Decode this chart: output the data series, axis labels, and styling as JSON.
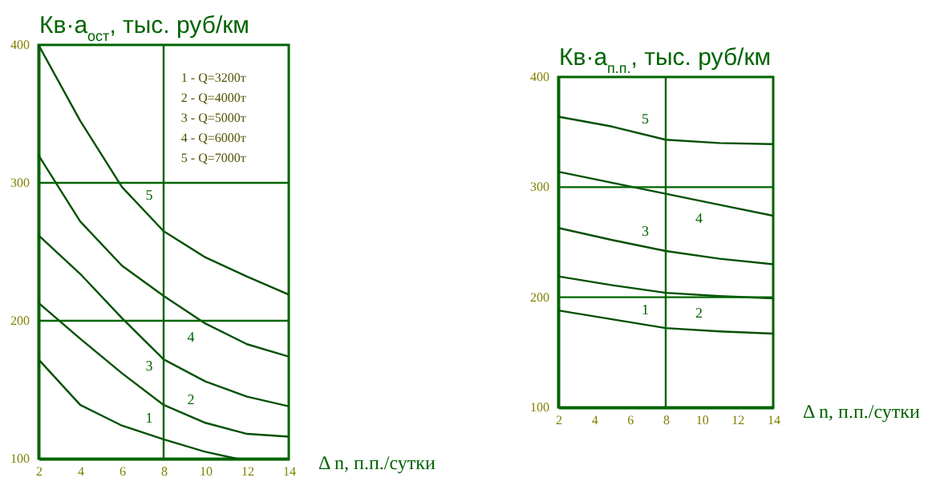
{
  "chart_data": [
    {
      "type": "line",
      "ylabel": "Кв·а$_{ост}$, тыс. руб/км",
      "xlabel": "Δ n, п.п./сутки",
      "xlim": [
        2,
        14
      ],
      "xticks": [
        2,
        4,
        6,
        8,
        10,
        12,
        14
      ],
      "ylim": [
        100,
        400
      ],
      "yticks": [
        100,
        200,
        300,
        400
      ],
      "x": [
        2,
        4,
        6,
        8,
        10,
        12,
        14
      ],
      "series": [
        {
          "name": "1",
          "color": "#005000",
          "x": [
            2,
            4,
            6,
            8,
            10,
            11.5
          ],
          "values": [
            172,
            139,
            124,
            114,
            105,
            100
          ]
        },
        {
          "name": "2",
          "color": "#005000",
          "values": [
            213,
            187,
            162,
            139,
            126,
            118,
            116
          ]
        },
        {
          "name": "3",
          "color": "#005000",
          "values": [
            262,
            234,
            202,
            172,
            156,
            145,
            138
          ]
        },
        {
          "name": "4",
          "color": "#005000",
          "values": [
            320,
            272,
            240,
            218,
            198,
            183,
            174
          ]
        },
        {
          "name": "5",
          "color": "#005000",
          "values": [
            400,
            345,
            297,
            265,
            246,
            232,
            219
          ]
        }
      ],
      "ref_lines": [
        {
          "axis": "x",
          "value": 8,
          "color": "#006400"
        },
        {
          "axis": "y",
          "value": 200,
          "color": "#006400"
        },
        {
          "axis": "y",
          "value": 300,
          "color": "#006400"
        }
      ],
      "annotations": [
        "1 - Q=3200т",
        "2 - Q=4000т",
        "3 - Q=5000т",
        "4 - Q=6000т",
        "5 - Q=7000т"
      ],
      "marker": "none",
      "line_style": "solid",
      "grid": false,
      "legend": false
    },
    {
      "type": "line",
      "ylabel": "Кв·а$_{п.п.}$, тыс. руб/км",
      "xlabel": "Δ n, п.п./сутки",
      "xlim": [
        2,
        14
      ],
      "xticks": [
        2,
        4,
        6,
        8,
        10,
        12,
        14
      ],
      "ylim": [
        100,
        400
      ],
      "yticks": [
        100,
        200,
        300,
        400
      ],
      "x": [
        2,
        5,
        8,
        11,
        14
      ],
      "series": [
        {
          "name": "1",
          "color": "#005000",
          "values": [
            188,
            180,
            172,
            169,
            167
          ]
        },
        {
          "name": "2",
          "color": "#005000",
          "values": [
            219,
            211,
            204,
            201,
            199
          ]
        },
        {
          "name": "3",
          "color": "#005000",
          "values": [
            263,
            252,
            242,
            235,
            230
          ]
        },
        {
          "name": "4",
          "color": "#005000",
          "values": [
            314,
            304,
            294,
            284,
            274
          ]
        },
        {
          "name": "5",
          "color": "#005000",
          "values": [
            364,
            355,
            343,
            340,
            339
          ]
        }
      ],
      "ref_lines": [
        {
          "axis": "x",
          "value": 8,
          "color": "#006400"
        },
        {
          "axis": "y",
          "value": 200,
          "color": "#006400"
        },
        {
          "axis": "y",
          "value": 300,
          "color": "#006400"
        }
      ],
      "marker": "none",
      "line_style": "solid",
      "grid": false,
      "legend": false
    }
  ]
}
